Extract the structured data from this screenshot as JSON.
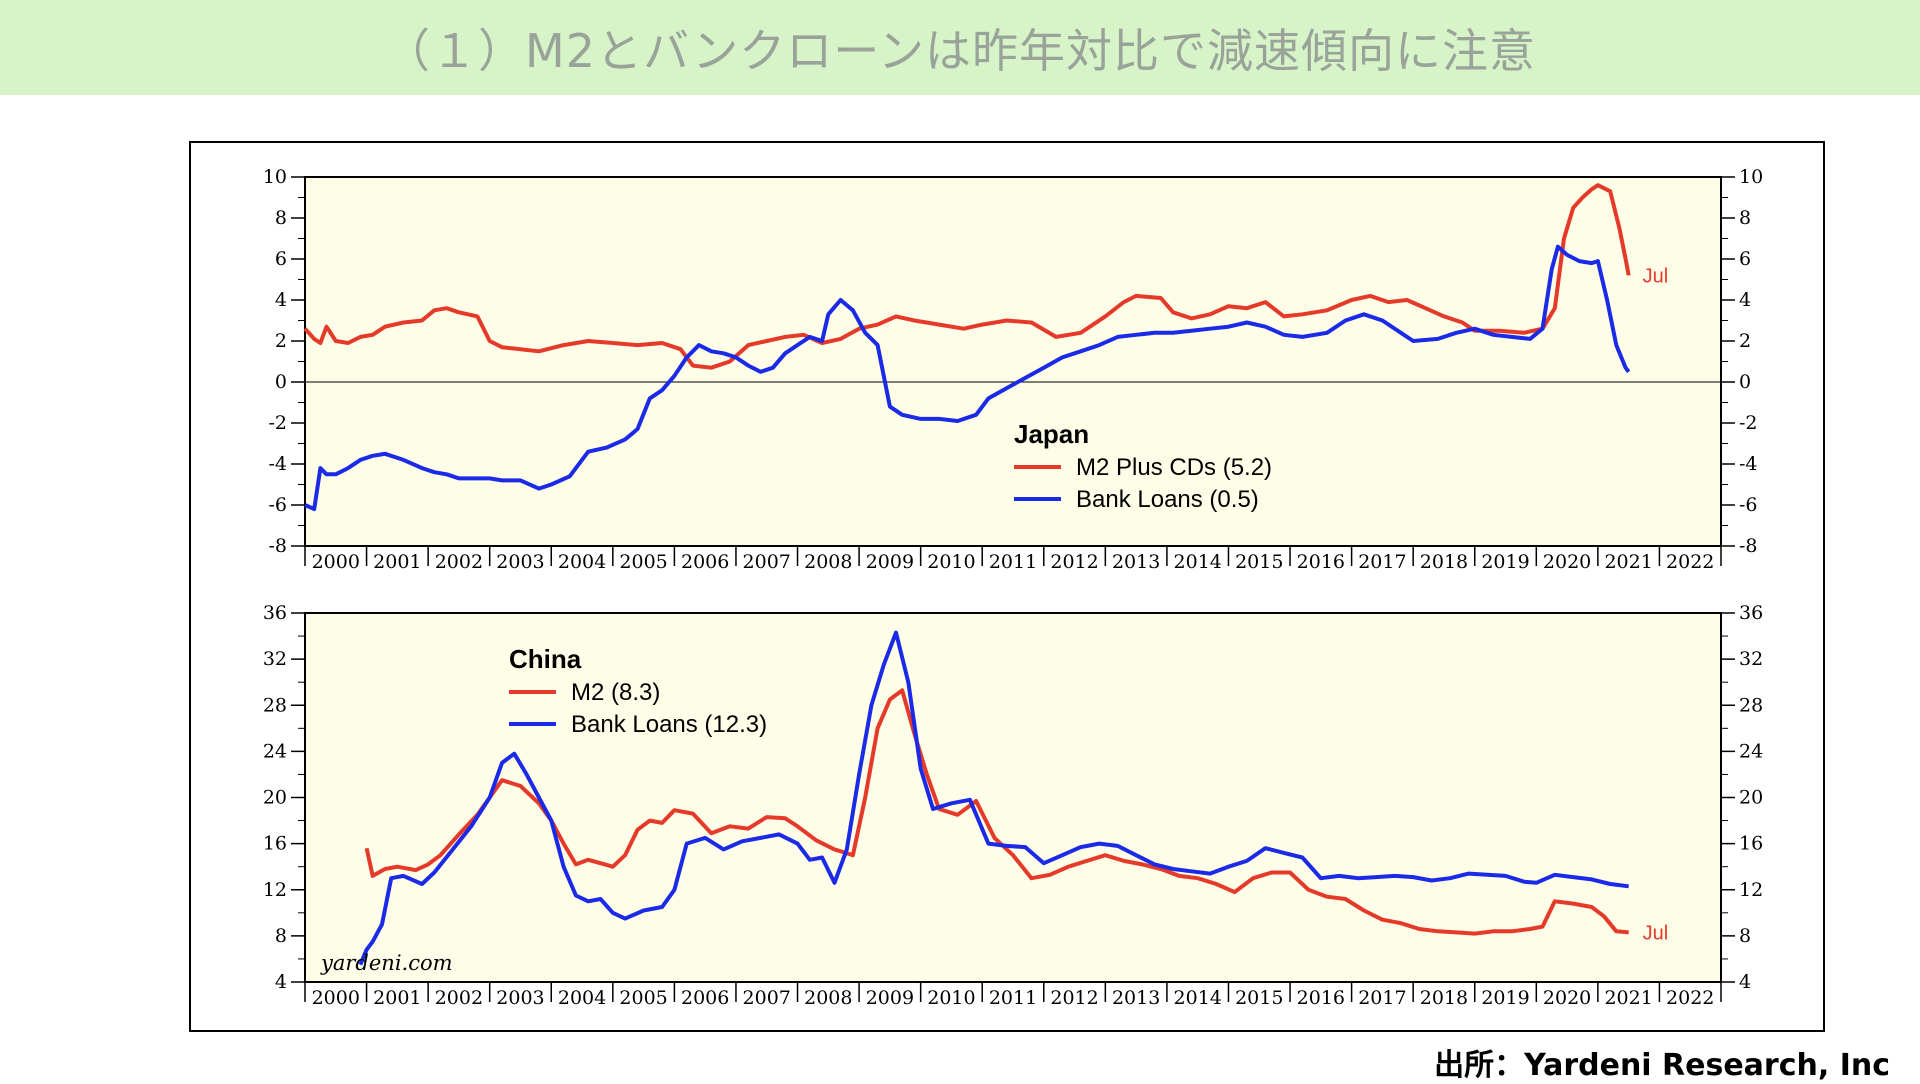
{
  "title": "（１）M2とバンクローンは昨年対比で減速傾向に注意",
  "source": "出所：Yardeni Research, Inc",
  "watermark": "yardeni.com",
  "colors": {
    "m2": "#e53a2a",
    "loans": "#1a2ae6",
    "plot_bg": "#fefde8",
    "title_bg": "#d7f4c8"
  },
  "chart_data": [
    {
      "type": "line",
      "legend_title": "Japan",
      "x_axis_years": [
        "2000",
        "2001",
        "2002",
        "2003",
        "2004",
        "2005",
        "2006",
        "2007",
        "2008",
        "2009",
        "2010",
        "2011",
        "2012",
        "2013",
        "2014",
        "2015",
        "2016",
        "2017",
        "2018",
        "2019",
        "2020",
        "2021",
        "2022"
      ],
      "xlim": [
        2000,
        2023
      ],
      "ylim": [
        -8,
        10
      ],
      "yticks": [
        -8,
        -6,
        -4,
        -2,
        0,
        2,
        4,
        6,
        8,
        10
      ],
      "zero_line": true,
      "end_label": "Jul",
      "series": [
        {
          "name": "M2 Plus CDs (5.2)",
          "color": "#e53a2a",
          "x": [
            2000.0,
            2000.15,
            2000.25,
            2000.35,
            2000.5,
            2000.7,
            2000.9,
            2001.1,
            2001.3,
            2001.6,
            2001.9,
            2002.1,
            2002.3,
            2002.5,
            2002.8,
            2003.0,
            2003.2,
            2003.5,
            2003.8,
            2004.2,
            2004.6,
            2005.0,
            2005.4,
            2005.8,
            2006.1,
            2006.3,
            2006.6,
            2006.9,
            2007.2,
            2007.5,
            2007.8,
            2008.1,
            2008.4,
            2008.7,
            2009.0,
            2009.3,
            2009.6,
            2009.9,
            2010.3,
            2010.7,
            2011.0,
            2011.4,
            2011.8,
            2012.2,
            2012.6,
            2013.0,
            2013.3,
            2013.5,
            2013.9,
            2014.1,
            2014.4,
            2014.7,
            2015.0,
            2015.3,
            2015.6,
            2015.9,
            2016.2,
            2016.6,
            2017.0,
            2017.3,
            2017.6,
            2017.9,
            2018.2,
            2018.5,
            2018.8,
            2019.0,
            2019.4,
            2019.8,
            2020.1,
            2020.3,
            2020.45,
            2020.6,
            2020.75,
            2020.9,
            2021.0,
            2021.2,
            2021.35,
            2021.45,
            2021.5
          ],
          "y": [
            2.6,
            2.1,
            1.9,
            2.7,
            2.0,
            1.9,
            2.2,
            2.3,
            2.7,
            2.9,
            3.0,
            3.5,
            3.6,
            3.4,
            3.2,
            2.0,
            1.7,
            1.6,
            1.5,
            1.8,
            2.0,
            1.9,
            1.8,
            1.9,
            1.6,
            0.8,
            0.7,
            1.0,
            1.8,
            2.0,
            2.2,
            2.3,
            1.9,
            2.1,
            2.6,
            2.8,
            3.2,
            3.0,
            2.8,
            2.6,
            2.8,
            3.0,
            2.9,
            2.2,
            2.4,
            3.2,
            3.9,
            4.2,
            4.1,
            3.4,
            3.1,
            3.3,
            3.7,
            3.6,
            3.9,
            3.2,
            3.3,
            3.5,
            4.0,
            4.2,
            3.9,
            4.0,
            3.6,
            3.2,
            2.9,
            2.5,
            2.5,
            2.4,
            2.6,
            3.6,
            7.0,
            8.5,
            9.0,
            9.4,
            9.6,
            9.3,
            7.5,
            6.0,
            5.2
          ]
        },
        {
          "name": "Bank Loans (0.5)",
          "color": "#1a2ae6",
          "x": [
            2000.0,
            2000.15,
            2000.25,
            2000.35,
            2000.5,
            2000.7,
            2000.9,
            2001.1,
            2001.3,
            2001.6,
            2001.9,
            2002.1,
            2002.3,
            2002.5,
            2002.8,
            2003.0,
            2003.2,
            2003.5,
            2003.8,
            2004.0,
            2004.3,
            2004.6,
            2004.9,
            2005.2,
            2005.4,
            2005.6,
            2005.8,
            2006.0,
            2006.2,
            2006.4,
            2006.6,
            2006.8,
            2007.0,
            2007.2,
            2007.4,
            2007.6,
            2007.8,
            2008.0,
            2008.2,
            2008.4,
            2008.5,
            2008.7,
            2008.9,
            2009.1,
            2009.3,
            2009.5,
            2009.7,
            2010.0,
            2010.3,
            2010.6,
            2010.9,
            2011.1,
            2011.4,
            2011.7,
            2012.0,
            2012.3,
            2012.6,
            2012.9,
            2013.2,
            2013.5,
            2013.8,
            2014.1,
            2014.4,
            2014.7,
            2015.0,
            2015.3,
            2015.6,
            2015.9,
            2016.2,
            2016.6,
            2016.9,
            2017.2,
            2017.5,
            2017.8,
            2018.0,
            2018.4,
            2018.7,
            2019.0,
            2019.3,
            2019.6,
            2019.9,
            2020.1,
            2020.25,
            2020.35,
            2020.5,
            2020.7,
            2020.9,
            2021.0,
            2021.15,
            2021.3,
            2021.45,
            2021.5
          ],
          "y": [
            -6.0,
            -6.2,
            -4.2,
            -4.5,
            -4.5,
            -4.2,
            -3.8,
            -3.6,
            -3.5,
            -3.8,
            -4.2,
            -4.4,
            -4.5,
            -4.7,
            -4.7,
            -4.7,
            -4.8,
            -4.8,
            -5.2,
            -5.0,
            -4.6,
            -3.4,
            -3.2,
            -2.8,
            -2.3,
            -0.8,
            -0.4,
            0.3,
            1.2,
            1.8,
            1.5,
            1.4,
            1.2,
            0.8,
            0.5,
            0.7,
            1.4,
            1.8,
            2.2,
            2.0,
            3.3,
            4.0,
            3.5,
            2.4,
            1.8,
            -1.2,
            -1.6,
            -1.8,
            -1.8,
            -1.9,
            -1.6,
            -0.8,
            -0.3,
            0.2,
            0.7,
            1.2,
            1.5,
            1.8,
            2.2,
            2.3,
            2.4,
            2.4,
            2.5,
            2.6,
            2.7,
            2.9,
            2.7,
            2.3,
            2.2,
            2.4,
            3.0,
            3.3,
            3.0,
            2.4,
            2.0,
            2.1,
            2.4,
            2.6,
            2.3,
            2.2,
            2.1,
            2.6,
            5.5,
            6.6,
            6.2,
            5.9,
            5.8,
            5.9,
            4.0,
            1.8,
            0.7,
            0.5
          ]
        }
      ]
    },
    {
      "type": "line",
      "legend_title": "China",
      "x_axis_years": [
        "2000",
        "2001",
        "2002",
        "2003",
        "2004",
        "2005",
        "2006",
        "2007",
        "2008",
        "2009",
        "2010",
        "2011",
        "2012",
        "2013",
        "2014",
        "2015",
        "2016",
        "2017",
        "2018",
        "2019",
        "2020",
        "2021",
        "2022"
      ],
      "xlim": [
        2000,
        2023
      ],
      "ylim": [
        4,
        36
      ],
      "yticks": [
        4,
        8,
        12,
        16,
        20,
        24,
        28,
        32,
        36
      ],
      "end_label": "Jul",
      "series": [
        {
          "name": "M2 (8.3)",
          "color": "#e53a2a",
          "x": [
            2001.0,
            2001.1,
            2001.3,
            2001.5,
            2001.8,
            2002.0,
            2002.2,
            2002.5,
            2002.8,
            2003.0,
            2003.2,
            2003.5,
            2003.8,
            2004.0,
            2004.2,
            2004.4,
            2004.6,
            2004.8,
            2005.0,
            2005.2,
            2005.4,
            2005.6,
            2005.8,
            2006.0,
            2006.3,
            2006.6,
            2006.9,
            2007.2,
            2007.5,
            2007.8,
            2008.0,
            2008.3,
            2008.6,
            2008.9,
            2009.1,
            2009.3,
            2009.5,
            2009.7,
            2009.9,
            2010.1,
            2010.3,
            2010.6,
            2010.9,
            2011.2,
            2011.5,
            2011.8,
            2012.1,
            2012.4,
            2012.7,
            2013.0,
            2013.3,
            2013.6,
            2013.9,
            2014.2,
            2014.5,
            2014.8,
            2015.1,
            2015.4,
            2015.7,
            2016.0,
            2016.3,
            2016.6,
            2016.9,
            2017.2,
            2017.5,
            2017.8,
            2018.1,
            2018.4,
            2018.7,
            2019.0,
            2019.3,
            2019.6,
            2019.9,
            2020.1,
            2020.3,
            2020.6,
            2020.9,
            2021.1,
            2021.3,
            2021.5
          ],
          "y": [
            15.6,
            13.2,
            13.8,
            14.0,
            13.7,
            14.2,
            15.0,
            16.8,
            18.5,
            20.0,
            21.5,
            21.0,
            19.5,
            18.0,
            16.0,
            14.2,
            14.6,
            14.3,
            14.0,
            15.0,
            17.2,
            18.0,
            17.8,
            18.9,
            18.6,
            16.9,
            17.5,
            17.3,
            18.3,
            18.2,
            17.5,
            16.3,
            15.5,
            15.0,
            20.0,
            26.0,
            28.5,
            29.3,
            25.5,
            22.0,
            19.0,
            18.5,
            19.7,
            16.5,
            15.0,
            13.0,
            13.3,
            14.0,
            14.5,
            15.0,
            14.5,
            14.2,
            13.8,
            13.2,
            13.0,
            12.5,
            11.8,
            13.0,
            13.5,
            13.5,
            12.0,
            11.4,
            11.2,
            10.2,
            9.4,
            9.1,
            8.6,
            8.4,
            8.3,
            8.2,
            8.4,
            8.4,
            8.6,
            8.8,
            11.0,
            10.8,
            10.5,
            9.7,
            8.4,
            8.3
          ]
        },
        {
          "name": "Bank Loans (12.3)",
          "color": "#1a2ae6",
          "x": [
            2000.9,
            2001.0,
            2001.1,
            2001.25,
            2001.4,
            2001.6,
            2001.9,
            2002.1,
            2002.4,
            2002.7,
            2003.0,
            2003.2,
            2003.4,
            2003.6,
            2003.8,
            2004.0,
            2004.2,
            2004.4,
            2004.6,
            2004.8,
            2005.0,
            2005.2,
            2005.5,
            2005.8,
            2006.0,
            2006.2,
            2006.5,
            2006.8,
            2007.1,
            2007.4,
            2007.7,
            2008.0,
            2008.2,
            2008.4,
            2008.6,
            2008.8,
            2009.0,
            2009.2,
            2009.4,
            2009.6,
            2009.8,
            2010.0,
            2010.2,
            2010.5,
            2010.8,
            2011.1,
            2011.4,
            2011.7,
            2012.0,
            2012.3,
            2012.6,
            2012.9,
            2013.2,
            2013.5,
            2013.8,
            2014.1,
            2014.4,
            2014.7,
            2015.0,
            2015.3,
            2015.6,
            2015.9,
            2016.2,
            2016.5,
            2016.8,
            2017.1,
            2017.4,
            2017.7,
            2018.0,
            2018.3,
            2018.6,
            2018.9,
            2019.2,
            2019.5,
            2019.8,
            2020.0,
            2020.3,
            2020.6,
            2020.9,
            2021.2,
            2021.5
          ],
          "y": [
            5.5,
            6.8,
            7.5,
            9.0,
            13.0,
            13.2,
            12.5,
            13.5,
            15.5,
            17.5,
            20.0,
            23.0,
            23.8,
            22.0,
            20.0,
            18.0,
            14.0,
            11.5,
            11.0,
            11.2,
            10.0,
            9.5,
            10.2,
            10.5,
            12.0,
            16.0,
            16.5,
            15.5,
            16.2,
            16.5,
            16.8,
            16.0,
            14.6,
            14.8,
            12.6,
            15.5,
            22.0,
            28.0,
            31.5,
            34.3,
            30.0,
            22.5,
            19.0,
            19.5,
            19.8,
            16.0,
            15.8,
            15.7,
            14.3,
            15.0,
            15.7,
            16.0,
            15.8,
            15.0,
            14.2,
            13.8,
            13.6,
            13.4,
            14.0,
            14.5,
            15.6,
            15.2,
            14.8,
            13.0,
            13.2,
            13.0,
            13.1,
            13.2,
            13.1,
            12.8,
            13.0,
            13.4,
            13.3,
            13.2,
            12.7,
            12.6,
            13.3,
            13.1,
            12.9,
            12.5,
            12.3
          ]
        }
      ]
    }
  ]
}
